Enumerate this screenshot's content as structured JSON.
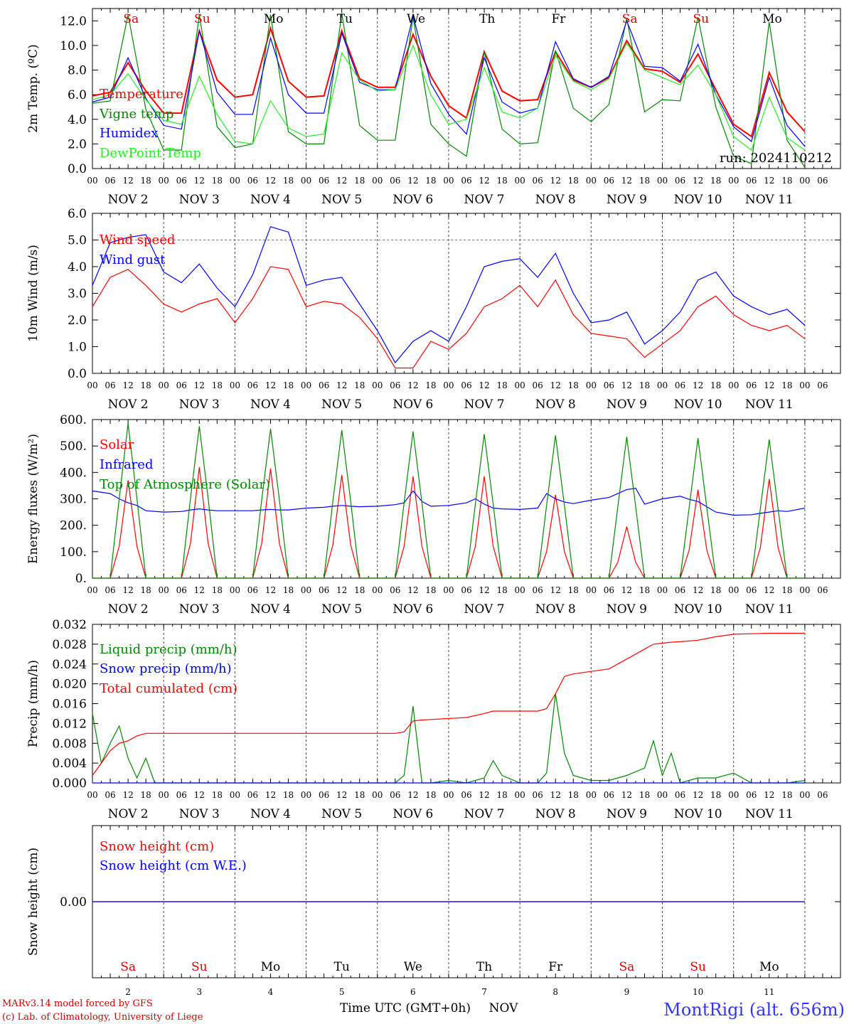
{
  "footer": {
    "model_line": "MARv3.14 model forced by GFS",
    "lab_line": "(c) Lab. of Climatology, University of Liege",
    "xaxis_title": "Time UTC (GMT+0h)",
    "month_label": "NOV",
    "station": "MontRigi (alt. 656m)"
  },
  "run_label": "run: 2024110212",
  "colors": {
    "temperature": "#ff0000",
    "vigne": "#008800",
    "humidex": "#0000ff",
    "dewpoint": "#22ee22",
    "weekend": "#dd0000",
    "weekday": "#000000"
  },
  "days": [
    "2",
    "3",
    "4",
    "5",
    "6",
    "7",
    "8",
    "9",
    "10",
    "11"
  ],
  "day_names": [
    "Sa",
    "Su",
    "Mo",
    "Tu",
    "We",
    "Th",
    "Fr",
    "Sa",
    "Su",
    "Mo"
  ],
  "day_name_weekend": [
    true,
    true,
    false,
    false,
    false,
    false,
    false,
    true,
    true,
    false
  ],
  "day_labels": [
    "NOV  2",
    "NOV  3",
    "NOV  4",
    "NOV  5",
    "NOV  6",
    "NOV  7",
    "NOV  8",
    "NOV  9",
    "NOV 10",
    "NOV 11"
  ],
  "hour_ticks": [
    "00",
    "06",
    "12",
    "18"
  ],
  "chart_data": [
    {
      "type": "line",
      "ylabel": "2m Temp. (ºC)",
      "ylim": [
        0,
        13
      ],
      "yticks": [
        "0.0",
        "2.0",
        "4.0",
        "6.0",
        "8.0",
        "10.0",
        "12.0"
      ],
      "ytick_values": [
        0,
        2,
        4,
        6,
        8,
        10,
        12
      ],
      "x_hours": [
        0,
        6,
        12,
        18,
        24,
        30,
        36,
        42,
        48,
        54,
        60,
        66,
        72,
        78,
        84,
        90,
        96,
        102,
        108,
        114,
        120,
        126,
        132,
        138,
        144,
        150,
        156,
        162,
        168,
        174,
        180,
        186,
        192,
        198,
        204,
        210,
        216,
        222,
        228,
        234,
        240
      ],
      "series": [
        {
          "name": "Temperature",
          "color": "#ff0000",
          "values": [
            5.9,
            6.2,
            8.6,
            6.3,
            4.5,
            4.5,
            11.2,
            7.2,
            5.8,
            6.0,
            11.4,
            7.1,
            5.8,
            5.9,
            11.2,
            7.3,
            6.6,
            6.6,
            10.9,
            7.5,
            5.1,
            4.1,
            9.5,
            6.3,
            5.5,
            5.6,
            9.5,
            7.2,
            6.6,
            7.4,
            10.4,
            8.1,
            7.9,
            7.0,
            9.3,
            6.4,
            3.6,
            2.6,
            7.8,
            4.6,
            3.0
          ]
        },
        {
          "name": "Vigne temp",
          "color": "#008800",
          "values": [
            5.3,
            5.5,
            12.5,
            4.8,
            1.5,
            1.5,
            12.5,
            3.4,
            1.7,
            2.0,
            12.5,
            3.0,
            2.0,
            2.0,
            12.6,
            3.5,
            2.3,
            2.3,
            12.3,
            3.6,
            2.0,
            1.0,
            9.5,
            3.2,
            2.0,
            2.1,
            9.6,
            4.9,
            3.8,
            5.2,
            12.2,
            4.6,
            5.6,
            5.5,
            12.3,
            5.0,
            1.0,
            0.4,
            11.9,
            2.3,
            0.1
          ]
        },
        {
          "name": "Humidex",
          "color": "#0000ff",
          "values": [
            5.4,
            5.8,
            9.0,
            5.7,
            3.5,
            3.2,
            11.2,
            6.2,
            4.4,
            4.4,
            10.6,
            6.0,
            4.5,
            4.5,
            11.0,
            7.0,
            6.4,
            6.4,
            12.4,
            6.9,
            4.4,
            2.8,
            9.0,
            5.4,
            4.5,
            4.9,
            10.3,
            7.3,
            6.6,
            7.5,
            12.0,
            8.3,
            8.2,
            7.1,
            10.1,
            6.0,
            3.4,
            2.2,
            7.4,
            3.5,
            1.8
          ]
        },
        {
          "name": "DewPoint Temp",
          "color": "#22ee22",
          "values": [
            5.6,
            6.0,
            7.7,
            5.6,
            3.9,
            3.6,
            7.5,
            4.4,
            2.2,
            2.0,
            5.5,
            3.3,
            2.6,
            2.8,
            9.4,
            7.2,
            6.3,
            6.4,
            10.0,
            6.0,
            3.6,
            4.0,
            8.2,
            4.6,
            4.1,
            4.9,
            9.2,
            7.1,
            6.4,
            7.3,
            10.2,
            8.0,
            7.4,
            6.8,
            8.4,
            6.0,
            2.6,
            1.5,
            5.8,
            2.5,
            1.5
          ]
        }
      ]
    },
    {
      "type": "line",
      "ylabel": "10m Wind (m/s)",
      "ylim": [
        0,
        6
      ],
      "yticks": [
        "0.0",
        "1.0",
        "2.0",
        "3.0",
        "4.0",
        "5.0",
        "6.0"
      ],
      "ytick_values": [
        0,
        1,
        2,
        3,
        4,
        5,
        6
      ],
      "reference_line": 5.0,
      "x_hours": [
        0,
        6,
        12,
        18,
        24,
        30,
        36,
        42,
        48,
        54,
        60,
        66,
        72,
        78,
        84,
        90,
        96,
        102,
        108,
        114,
        120,
        126,
        132,
        138,
        144,
        150,
        156,
        162,
        168,
        174,
        180,
        186,
        192,
        198,
        204,
        210,
        216,
        222,
        228,
        234,
        240
      ],
      "series": [
        {
          "name": "Wind speed",
          "color": "#ff0000",
          "values": [
            2.5,
            3.6,
            3.9,
            3.3,
            2.6,
            2.3,
            2.6,
            2.8,
            1.9,
            2.8,
            4.0,
            3.9,
            2.5,
            2.7,
            2.6,
            2.1,
            1.3,
            0.2,
            0.2,
            1.2,
            0.9,
            1.5,
            2.5,
            2.8,
            3.3,
            2.5,
            3.5,
            2.2,
            1.5,
            1.4,
            1.3,
            0.6,
            1.1,
            1.6,
            2.5,
            2.9,
            2.2,
            1.8,
            1.6,
            1.8,
            1.3
          ]
        },
        {
          "name": "Wind gust",
          "color": "#0000ff",
          "values": [
            3.3,
            4.9,
            5.1,
            5.2,
            3.8,
            3.4,
            4.1,
            3.2,
            2.5,
            3.7,
            5.5,
            5.3,
            3.3,
            3.5,
            3.6,
            2.6,
            1.6,
            0.4,
            1.2,
            1.6,
            1.2,
            2.5,
            4.0,
            4.2,
            4.3,
            3.6,
            4.5,
            3.0,
            1.9,
            2.0,
            2.3,
            1.1,
            1.6,
            2.3,
            3.5,
            3.8,
            2.9,
            2.5,
            2.2,
            2.4,
            1.8
          ]
        }
      ]
    },
    {
      "type": "line",
      "ylabel": "Energy fluxes (W/m²)",
      "ylim": [
        0,
        600
      ],
      "yticks": [
        "0.",
        "100.",
        "200.",
        "300.",
        "400.",
        "500.",
        "600."
      ],
      "ytick_values": [
        0,
        100,
        200,
        300,
        400,
        500,
        600
      ],
      "x_hours": [
        0,
        6,
        9,
        12,
        15,
        18,
        24,
        30,
        33,
        36,
        39,
        42,
        48,
        54,
        57,
        60,
        63,
        66,
        72,
        78,
        81,
        84,
        87,
        90,
        96,
        102,
        105,
        108,
        111,
        114,
        120,
        126,
        129,
        132,
        135,
        138,
        144,
        150,
        153,
        156,
        159,
        162,
        168,
        174,
        177,
        180,
        183,
        186,
        192,
        198,
        201,
        204,
        207,
        210,
        216,
        222,
        225,
        228,
        231,
        234,
        240
      ],
      "series": [
        {
          "name": "Solar",
          "color": "#ff0000",
          "values": [
            0,
            0,
            120,
            370,
            120,
            0,
            0,
            0,
            130,
            420,
            130,
            0,
            0,
            0,
            130,
            415,
            130,
            0,
            0,
            0,
            125,
            390,
            125,
            0,
            0,
            0,
            120,
            385,
            120,
            0,
            0,
            0,
            120,
            385,
            120,
            0,
            0,
            0,
            100,
            315,
            100,
            0,
            0,
            0,
            60,
            195,
            60,
            0,
            0,
            0,
            105,
            335,
            105,
            0,
            0,
            0,
            115,
            375,
            115,
            0,
            0
          ]
        },
        {
          "name": "Infrared",
          "color": "#0000ff",
          "values": [
            330,
            320,
            300,
            285,
            275,
            255,
            250,
            252,
            258,
            262,
            258,
            255,
            255,
            255,
            258,
            260,
            258,
            258,
            265,
            268,
            272,
            275,
            272,
            270,
            272,
            278,
            285,
            330,
            290,
            272,
            275,
            285,
            300,
            280,
            265,
            262,
            260,
            265,
            320,
            300,
            288,
            282,
            295,
            305,
            320,
            335,
            340,
            280,
            300,
            310,
            298,
            290,
            270,
            250,
            238,
            240,
            245,
            250,
            255,
            252,
            265
          ]
        },
        {
          "name": "Top of Atmosphere (Solar)",
          "color": "#008800",
          "values": [
            0,
            0,
            300,
            585,
            300,
            0,
            0,
            0,
            300,
            575,
            300,
            0,
            0,
            0,
            295,
            565,
            295,
            0,
            0,
            0,
            290,
            560,
            290,
            0,
            0,
            0,
            285,
            555,
            285,
            0,
            0,
            0,
            280,
            545,
            280,
            0,
            0,
            0,
            275,
            540,
            275,
            0,
            0,
            0,
            270,
            535,
            270,
            0,
            0,
            0,
            265,
            530,
            265,
            0,
            0,
            0,
            262,
            525,
            262,
            0,
            0
          ]
        }
      ]
    },
    {
      "type": "line",
      "ylabel": "Precip (mm/h)",
      "ylim": [
        0,
        0.032
      ],
      "yticks": [
        "0.000",
        "0.004",
        "0.008",
        "0.012",
        "0.016",
        "0.020",
        "0.024",
        "0.028",
        "0.032"
      ],
      "ytick_values": [
        0,
        0.004,
        0.008,
        0.012,
        0.016,
        0.02,
        0.024,
        0.028,
        0.032
      ],
      "x_hours": [
        0,
        3,
        6,
        9,
        12,
        15,
        18,
        21,
        24,
        30,
        36,
        42,
        48,
        54,
        60,
        66,
        72,
        78,
        84,
        90,
        96,
        102,
        105,
        108,
        111,
        114,
        120,
        126,
        132,
        135,
        138,
        144,
        150,
        153,
        156,
        159,
        162,
        168,
        174,
        180,
        186,
        189,
        192,
        195,
        198,
        204,
        210,
        216,
        222,
        228,
        234,
        240
      ],
      "series": [
        {
          "name": "Liquid precip (mm/h)",
          "color": "#008800",
          "values": [
            0.014,
            0.004,
            0.008,
            0.0115,
            0.005,
            0.001,
            0.005,
            0.0,
            0.0,
            0.0,
            0.0,
            0.0,
            0.0,
            0.0,
            0.0,
            0.0,
            0.0,
            0.0,
            0.0,
            0.0,
            0.0,
            0.0,
            0.0015,
            0.0155,
            0.0,
            0.0,
            0.0005,
            0.0,
            0.001,
            0.0045,
            0.0015,
            0.0,
            0.0,
            0.002,
            0.018,
            0.006,
            0.0015,
            0.0005,
            0.0005,
            0.0015,
            0.003,
            0.0085,
            0.0015,
            0.006,
            0.0,
            0.001,
            0.001,
            0.002,
            0.0,
            0.0,
            0.0,
            0.0005
          ]
        },
        {
          "name": "Snow precip (mm/h)",
          "color": "#0000ff",
          "values": [
            0,
            0,
            0,
            0,
            0,
            0,
            0,
            0,
            0,
            0,
            0,
            0,
            0,
            0,
            0,
            0,
            0,
            0,
            0,
            0,
            0,
            0,
            0,
            0,
            0,
            0,
            0,
            0,
            0,
            0,
            0,
            0,
            0,
            0,
            0,
            0,
            0,
            0,
            0,
            0,
            0,
            0,
            0,
            0,
            0,
            0,
            0,
            0,
            0,
            0,
            0,
            0
          ]
        },
        {
          "name": "Total cumulated (cm)",
          "color": "#ff0000",
          "values": [
            0.0015,
            0.004,
            0.0065,
            0.008,
            0.0085,
            0.0095,
            0.01,
            0.01,
            0.01,
            0.01,
            0.01,
            0.01,
            0.01,
            0.01,
            0.01,
            0.01,
            0.01,
            0.01,
            0.01,
            0.01,
            0.01,
            0.01,
            0.0103,
            0.0125,
            0.0127,
            0.0128,
            0.013,
            0.0132,
            0.014,
            0.0145,
            0.0145,
            0.0145,
            0.0145,
            0.015,
            0.018,
            0.0215,
            0.022,
            0.0225,
            0.023,
            0.025,
            0.027,
            0.028,
            0.0282,
            0.0284,
            0.0285,
            0.0288,
            0.0295,
            0.03,
            0.0301,
            0.0302,
            0.0302,
            0.0302
          ]
        }
      ]
    },
    {
      "type": "line",
      "ylabel": "Snow height (cm)",
      "ylim": [
        -1,
        1
      ],
      "yticks": [
        "0.00"
      ],
      "ytick_values": [
        0
      ],
      "x_hours": [
        0,
        240
      ],
      "series": [
        {
          "name": "Snow height (cm)",
          "color": "#ff0000",
          "values": [
            0,
            0
          ]
        },
        {
          "name": "Snow height (cm W.E.)",
          "color": "#0000ff",
          "values": [
            0,
            0
          ]
        }
      ]
    }
  ]
}
